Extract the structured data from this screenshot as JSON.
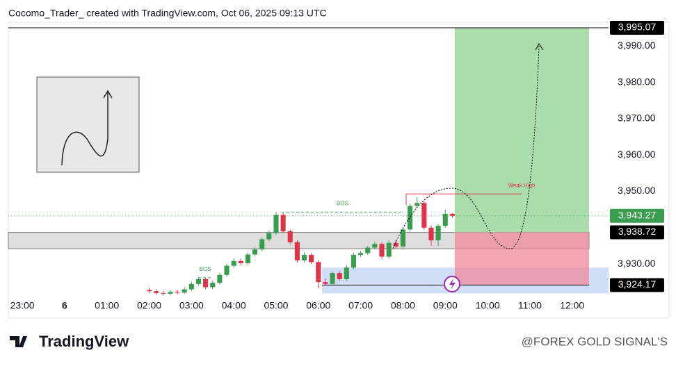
{
  "page": {
    "attribution": "Cocomo_Trader_ created with TradingView.com, Oct 06, 2025 09:13 UTC",
    "logo": "TradingView",
    "watermark": "@FOREX GOLD SIGNAL'S"
  },
  "chart_data": {
    "type": "candlestick",
    "x": [
      2.0,
      2.167,
      2.333,
      2.5,
      2.667,
      2.833,
      3.0,
      3.167,
      3.333,
      3.5,
      3.667,
      3.833,
      4.0,
      4.167,
      4.333,
      4.5,
      4.667,
      4.833,
      5.0,
      5.167,
      5.333,
      5.5,
      5.667,
      5.833,
      6.0,
      6.167,
      6.333,
      6.5,
      6.667,
      6.833,
      7.0,
      7.167,
      7.333,
      7.5,
      7.667,
      7.833,
      8.0,
      8.167,
      8.333,
      8.5,
      8.667,
      8.833,
      9.0,
      9.167
    ],
    "open": [
      3922.8,
      3922.5,
      3922.0,
      3921.8,
      3922.3,
      3922.1,
      3923.0,
      3924.5,
      3925.8,
      3923.6,
      3924.8,
      3927.0,
      3929.5,
      3930.8,
      3930.2,
      3932.6,
      3934.0,
      3936.8,
      3938.5,
      3943.5,
      3939.0,
      3936.0,
      3931.0,
      3932.5,
      3930.5,
      3925.0,
      3924.5,
      3927.5,
      3925.8,
      3929.0,
      3932.5,
      3933.0,
      3934.5,
      3935.5,
      3932.0,
      3935.8,
      3934.8,
      3939.5,
      3946.0,
      3946.8,
      3940.0,
      3936.5,
      3940.5,
      3943.8
    ],
    "high": [
      3923.4,
      3923.0,
      3922.6,
      3922.8,
      3922.9,
      3923.6,
      3925.0,
      3926.4,
      3926.2,
      3925.3,
      3927.5,
      3930.0,
      3931.6,
      3931.5,
      3933.1,
      3934.6,
      3937.3,
      3939.2,
      3944.3,
      3944.0,
      3939.5,
      3936.5,
      3933.2,
      3933.0,
      3931.0,
      3926.0,
      3928.0,
      3928.1,
      3929.6,
      3933.1,
      3933.6,
      3935.0,
      3936.1,
      3936.0,
      3936.4,
      3936.5,
      3940.0,
      3946.6,
      3948.5,
      3947.2,
      3940.6,
      3941.0,
      3945.0,
      3944.0
    ],
    "low": [
      3922.0,
      3921.5,
      3921.3,
      3921.4,
      3921.6,
      3921.7,
      3922.6,
      3924.0,
      3923.0,
      3923.1,
      3924.3,
      3926.5,
      3929.0,
      3929.6,
      3929.7,
      3932.1,
      3933.5,
      3936.3,
      3938.0,
      3938.4,
      3935.5,
      3930.4,
      3930.5,
      3930.0,
      3923.3,
      3924.0,
      3924.1,
      3925.3,
      3925.3,
      3928.5,
      3932.0,
      3932.5,
      3934.0,
      3931.4,
      3931.5,
      3934.2,
      3934.2,
      3939.0,
      3945.5,
      3939.4,
      3935.0,
      3935.0,
      3940.0,
      3942.8
    ],
    "close": [
      3922.5,
      3922.0,
      3921.8,
      3922.3,
      3922.1,
      3923.0,
      3924.5,
      3925.8,
      3923.6,
      3924.8,
      3927.0,
      3929.5,
      3930.8,
      3930.2,
      3932.6,
      3934.0,
      3936.8,
      3938.5,
      3943.5,
      3939.0,
      3936.0,
      3931.0,
      3932.5,
      3930.5,
      3925.0,
      3924.5,
      3927.5,
      3925.8,
      3929.0,
      3932.5,
      3933.0,
      3934.5,
      3935.5,
      3932.0,
      3935.8,
      3934.8,
      3939.5,
      3946.0,
      3946.8,
      3940.0,
      3936.5,
      3940.5,
      3943.8,
      3943.27
    ],
    "up_color": "#3a9c4f",
    "down_color": "#e0334a",
    "xlim": [
      -1.33,
      12.86
    ],
    "xticks": [
      {
        "value": -1,
        "label": "23:00"
      },
      {
        "value": 0,
        "label": "6"
      },
      {
        "value": 1,
        "label": "01:00"
      },
      {
        "value": 2,
        "label": "02:00"
      },
      {
        "value": 3,
        "label": "03:00"
      },
      {
        "value": 4,
        "label": "04:00"
      },
      {
        "value": 5,
        "label": "05:00"
      },
      {
        "value": 6,
        "label": "06:00"
      },
      {
        "value": 7,
        "label": "07:00"
      },
      {
        "value": 8,
        "label": "08:00"
      },
      {
        "value": 9,
        "label": "09:00"
      },
      {
        "value": 10,
        "label": "10:00"
      },
      {
        "value": 11,
        "label": "11:00"
      },
      {
        "value": 12,
        "label": "12:00"
      }
    ],
    "ylim": [
      3921.4,
      3995.07
    ],
    "yticks": [
      {
        "value": 3930,
        "label": "3,930.00"
      },
      {
        "value": 3950,
        "label": "3,950.00"
      },
      {
        "value": 3960,
        "label": "3,960.00"
      },
      {
        "value": 3970,
        "label": "3,970.00"
      },
      {
        "value": 3980,
        "label": "3,980.00"
      },
      {
        "value": 3990,
        "label": "3,990.00"
      }
    ],
    "position": {
      "target": {
        "value": 3995.07,
        "label": "3,995.07"
      },
      "entry": {
        "value": 3938.72,
        "label": "3,938.72"
      },
      "stop": {
        "value": 3924.17,
        "label": "3,924.17"
      }
    },
    "last_price": {
      "value": 3943.27,
      "label": "3,943.27"
    },
    "supply_zone": [
      3938.7,
      3934.2
    ],
    "demand_zone": [
      3929.0,
      3921.9
    ],
    "weak_high": {
      "value": 3949.3,
      "label": "Weak High"
    },
    "bos": [
      {
        "value": 3944.3,
        "label": "BOS"
      },
      {
        "value": 3926.2,
        "label": "BOS"
      }
    ]
  }
}
